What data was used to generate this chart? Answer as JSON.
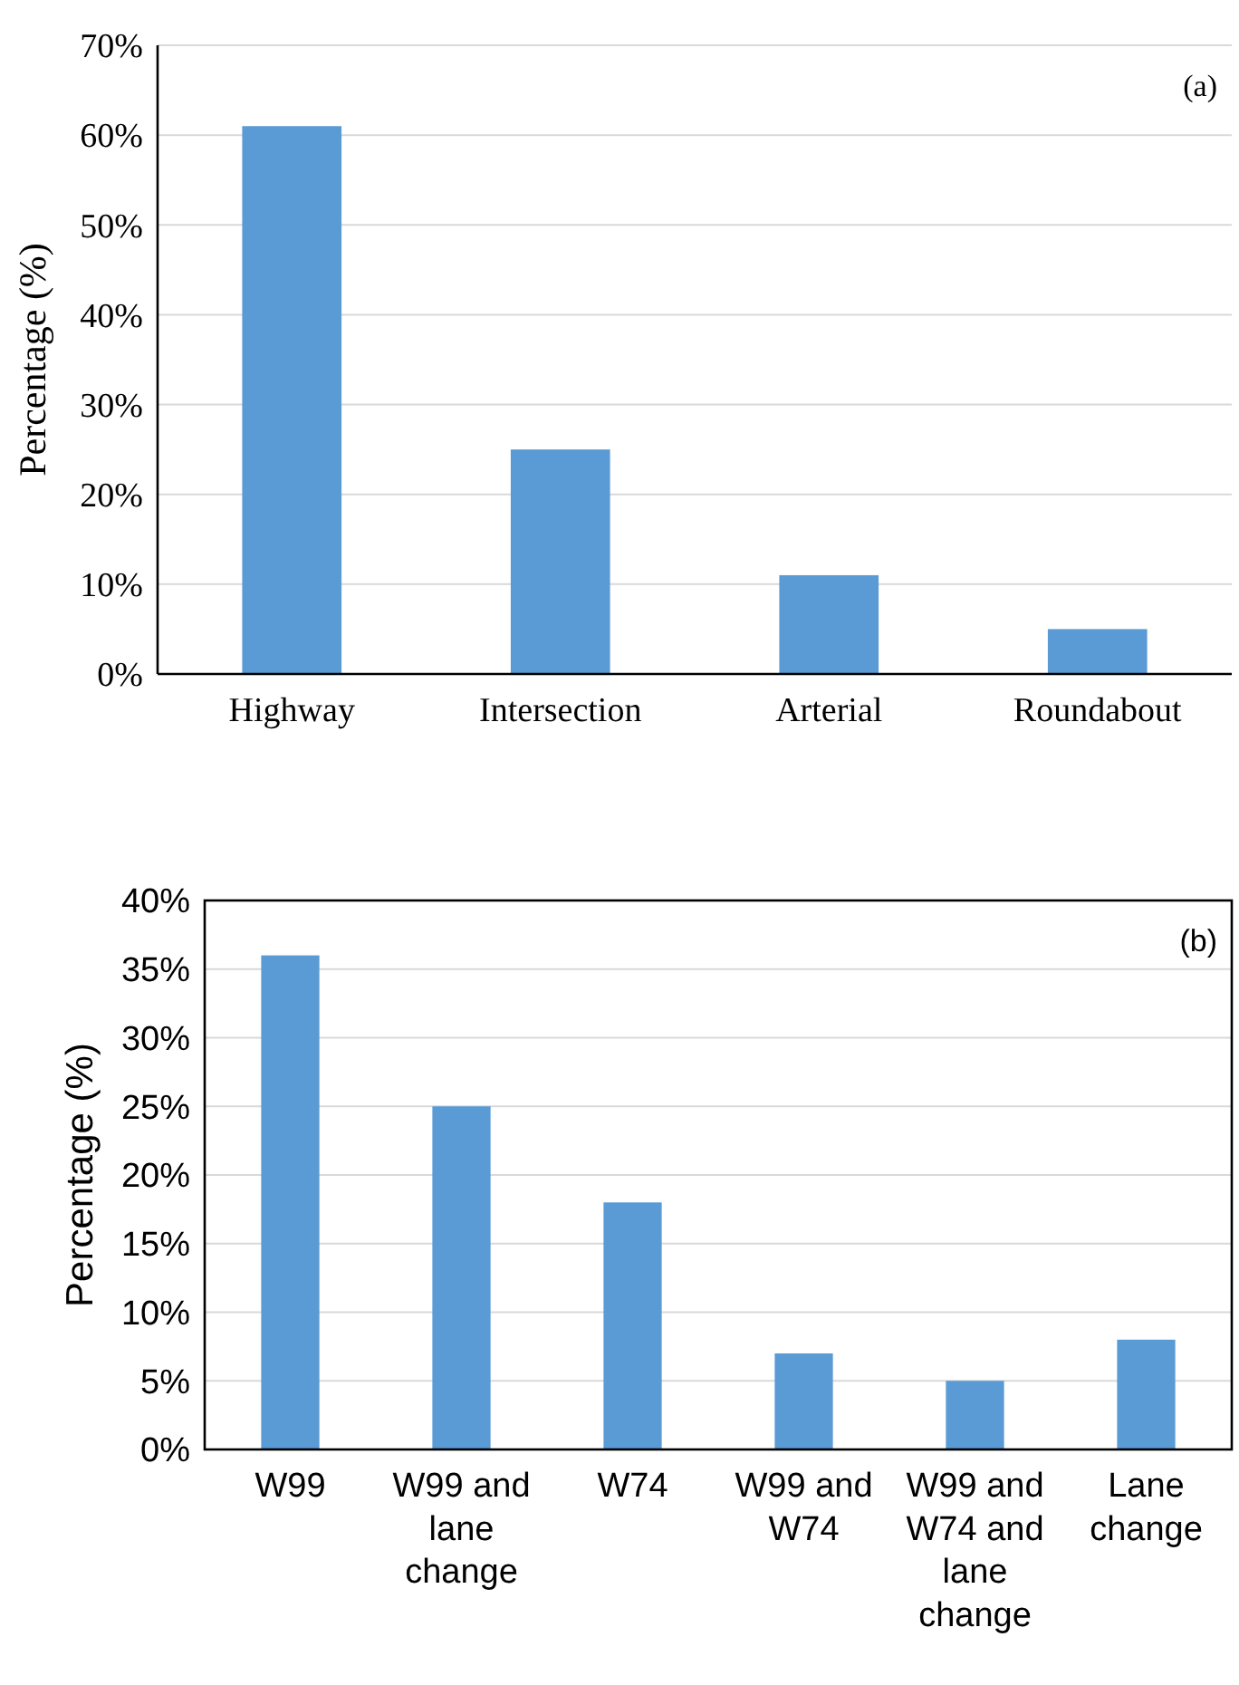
{
  "chart_data": [
    {
      "type": "bar",
      "ylabel": "Percentage (%)",
      "categories": [
        "Highway",
        "Intersection",
        "Arterial",
        "Roundabout"
      ],
      "values": [
        61,
        25,
        11,
        5
      ],
      "color": "#5b9bd5",
      "ylim": [
        0,
        70
      ],
      "yticks": [
        {
          "value": 0,
          "label": "0%"
        },
        {
          "value": 10,
          "label": "10%"
        },
        {
          "value": 20,
          "label": "20%"
        },
        {
          "value": 30,
          "label": "30%"
        },
        {
          "value": 40,
          "label": "40%"
        },
        {
          "value": 50,
          "label": "50%"
        },
        {
          "value": 60,
          "label": "60%"
        },
        {
          "value": 70,
          "label": "70%"
        }
      ],
      "grid": "y",
      "annotations": [
        "(a)"
      ]
    },
    {
      "type": "bar",
      "ylabel": "Percentage (%)",
      "categories": [
        "W99",
        "W99 and lane change",
        "W74",
        "W99 and W74",
        "W99 and W74 and lane change",
        "Lane change"
      ],
      "values": [
        36,
        25,
        18,
        7,
        5,
        8
      ],
      "color": "#5b9bd5",
      "ylim": [
        0,
        40
      ],
      "yticks": [
        {
          "value": 0,
          "label": "0%"
        },
        {
          "value": 5,
          "label": "5%"
        },
        {
          "value": 10,
          "label": "10%"
        },
        {
          "value": 15,
          "label": "15%"
        },
        {
          "value": 20,
          "label": "20%"
        },
        {
          "value": 25,
          "label": "25%"
        },
        {
          "value": 30,
          "label": "30%"
        },
        {
          "value": 35,
          "label": "35%"
        },
        {
          "value": 40,
          "label": "40%"
        }
      ],
      "grid": "y",
      "annotations": [
        "(b)"
      ]
    }
  ]
}
